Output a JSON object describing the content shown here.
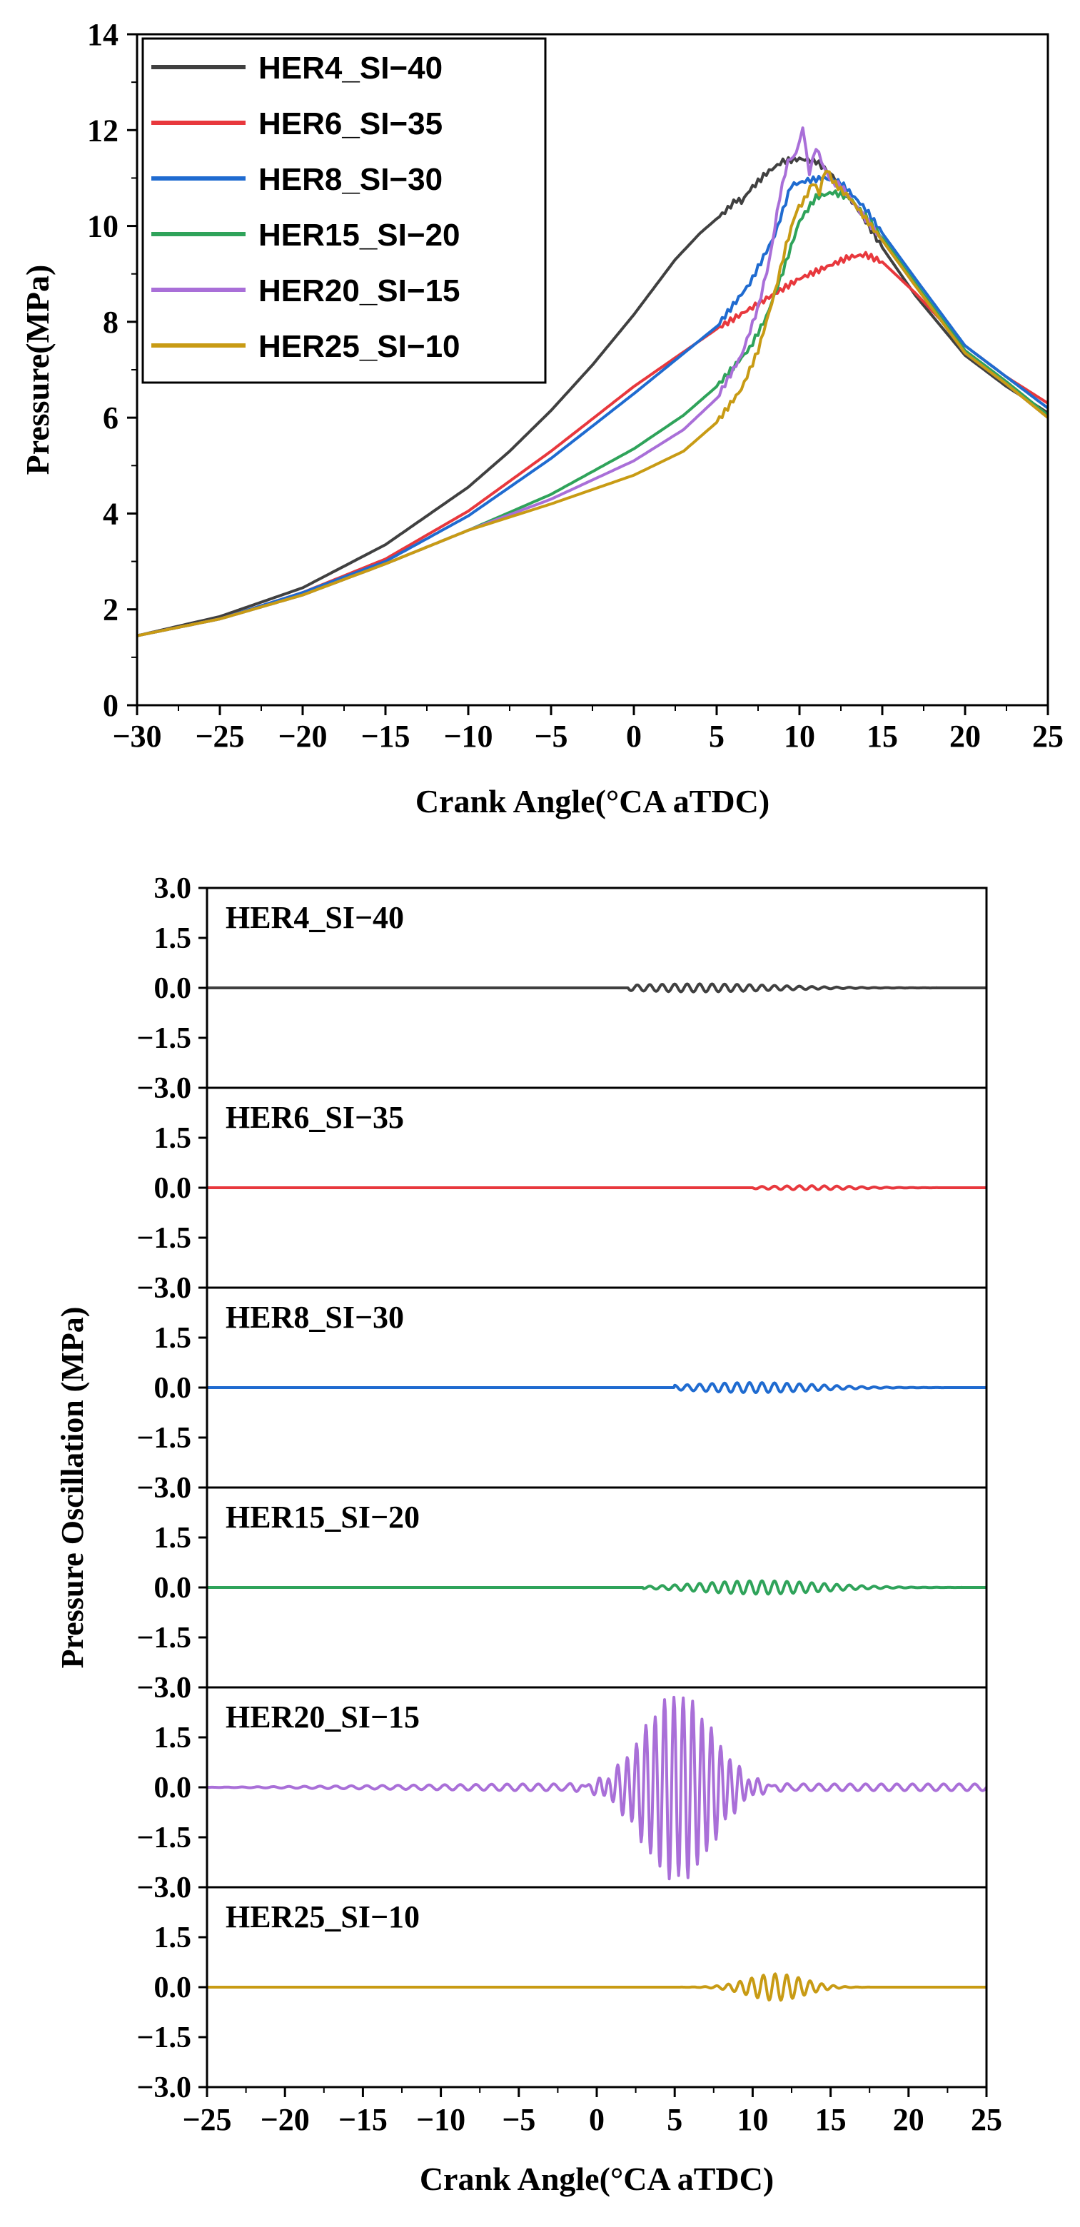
{
  "chart_data": [
    {
      "type": "line",
      "xlabel": "Crank Angle(°CA aTDC)",
      "ylabel": "Pressure(MPa)",
      "xlim": [
        -30,
        25
      ],
      "ylim": [
        0,
        14
      ],
      "xticks": [
        -30,
        -25,
        -20,
        -15,
        -10,
        -5,
        0,
        5,
        10,
        15,
        20,
        25
      ],
      "yticks": [
        0,
        2,
        4,
        6,
        8,
        10,
        12,
        14
      ],
      "grid": false,
      "legend": "top-left",
      "series": [
        {
          "name": "HER4_SI−40",
          "color": "#404040",
          "x": [
            -30,
            -25,
            -20,
            -15,
            -10,
            -7.5,
            -5,
            -2.5,
            0,
            2.5,
            4,
            5.5,
            6.2,
            6.5,
            7,
            8,
            9,
            10,
            11,
            12,
            13,
            14,
            15,
            17,
            20,
            22.5,
            25
          ],
          "y": [
            1.45,
            1.85,
            2.45,
            3.35,
            4.55,
            5.3,
            6.15,
            7.1,
            8.15,
            9.3,
            9.85,
            10.3,
            10.55,
            10.5,
            10.75,
            11.1,
            11.35,
            11.4,
            11.35,
            11.05,
            10.6,
            10.1,
            9.55,
            8.55,
            7.3,
            6.65,
            6.1
          ]
        },
        {
          "name": "HER6_SI−35",
          "color": "#e8383d",
          "x": [
            -30,
            -25,
            -20,
            -15,
            -10,
            -5,
            0,
            5,
            10,
            13,
            14,
            15,
            17,
            20,
            22.5,
            25
          ],
          "y": [
            1.45,
            1.8,
            2.35,
            3.05,
            4.05,
            5.3,
            6.65,
            7.85,
            8.9,
            9.35,
            9.4,
            9.25,
            8.6,
            7.5,
            6.85,
            6.3
          ]
        },
        {
          "name": "HER8_SI−30",
          "color": "#1f6bd0",
          "x": [
            -30,
            -25,
            -20,
            -15,
            -10,
            -5,
            0,
            5,
            7,
            8.5,
            9.5,
            10.5,
            11.5,
            12.5,
            14,
            15,
            17,
            20,
            22.5,
            25
          ],
          "y": [
            1.45,
            1.8,
            2.35,
            3.0,
            3.95,
            5.15,
            6.5,
            7.9,
            8.8,
            9.8,
            10.85,
            10.95,
            11.0,
            10.9,
            10.35,
            9.85,
            8.9,
            7.5,
            6.85,
            6.2
          ]
        },
        {
          "name": "HER15_SI−20",
          "color": "#2fa35a",
          "x": [
            -30,
            -25,
            -20,
            -15,
            -10,
            -5,
            0,
            3,
            5,
            7,
            8,
            9,
            10,
            11,
            12,
            13,
            14,
            15,
            17,
            20,
            22.5,
            25
          ],
          "y": [
            1.45,
            1.8,
            2.3,
            2.95,
            3.65,
            4.4,
            5.35,
            6.05,
            6.65,
            7.45,
            8.1,
            9.05,
            10.1,
            10.6,
            10.7,
            10.6,
            10.2,
            9.75,
            8.8,
            7.4,
            6.75,
            6.05
          ]
        },
        {
          "name": "HER20_SI−15",
          "color": "#a96fd8",
          "x": [
            -30,
            -25,
            -20,
            -15,
            -10,
            -5,
            0,
            3,
            5,
            6.5,
            7.5,
            8.2,
            8.8,
            9.3,
            9.8,
            10.2,
            10.6,
            11.0,
            11.5,
            12.0,
            12.5,
            13,
            14,
            15,
            17,
            20,
            22.5,
            25
          ],
          "y": [
            1.45,
            1.8,
            2.3,
            2.95,
            3.65,
            4.3,
            5.1,
            5.75,
            6.4,
            7.3,
            8.3,
            9.3,
            10.6,
            11.35,
            11.5,
            12.05,
            11.1,
            11.65,
            11.2,
            10.9,
            10.85,
            10.6,
            10.15,
            9.7,
            8.75,
            7.35,
            6.7,
            6.0
          ]
        },
        {
          "name": "HER25_SI−10",
          "color": "#c89b14",
          "x": [
            -30,
            -25,
            -20,
            -15,
            -10,
            -5,
            0,
            3,
            5,
            6.5,
            7.5,
            8.5,
            9.2,
            9.8,
            10.3,
            10.8,
            11.2,
            11.6,
            12.0,
            12.5,
            13,
            14,
            15,
            17,
            20,
            22.5,
            25
          ],
          "y": [
            1.45,
            1.8,
            2.3,
            2.95,
            3.65,
            4.2,
            4.8,
            5.3,
            5.9,
            6.6,
            7.4,
            8.6,
            9.6,
            10.3,
            10.55,
            10.9,
            10.7,
            11.2,
            10.95,
            10.75,
            10.6,
            10.15,
            9.7,
            8.75,
            7.35,
            6.7,
            6.0
          ]
        }
      ]
    },
    {
      "type": "line",
      "xlabel": "Crank Angle(°CA aTDC)",
      "ylabel": "Pressure Oscillation (MPa)",
      "xlim": [
        -25,
        25
      ],
      "ylim": [
        -3.0,
        3.0
      ],
      "xticks": [
        -25,
        -20,
        -15,
        -10,
        -5,
        0,
        5,
        10,
        15,
        20,
        25
      ],
      "yticks": [
        -3.0,
        -1.5,
        0.0,
        1.5,
        3.0
      ],
      "grid": false,
      "panels": [
        {
          "name": "HER4_SI−40",
          "color": "#404040",
          "oscillation": {
            "start": 2,
            "peak": 6.5,
            "amp": 0.12,
            "period": 0.8,
            "decay": 5
          }
        },
        {
          "name": "HER6_SI−35",
          "color": "#e8383d",
          "oscillation": {
            "start": 10,
            "peak": 13.5,
            "amp": 0.06,
            "period": 0.8,
            "decay": 3
          }
        },
        {
          "name": "HER8_SI−30",
          "color": "#1f6bd0",
          "oscillation": {
            "start": 5,
            "peak": 10,
            "amp": 0.15,
            "period": 0.8,
            "decay": 4
          }
        },
        {
          "name": "HER15_SI−20",
          "color": "#2fa35a",
          "oscillation": {
            "start": 3,
            "peak": 10.5,
            "amp": 0.2,
            "period": 0.8,
            "decay": 4
          }
        },
        {
          "name": "HER20_SI−15",
          "color": "#a96fd8",
          "oscillation": {
            "start": -25,
            "peak": 5.2,
            "amp": 2.75,
            "period": 0.6,
            "decay": 2.2,
            "background": 0.1
          }
        },
        {
          "name": "HER25_SI−10",
          "color": "#c89b14",
          "oscillation": {
            "start": 5,
            "peak": 11.5,
            "amp": 0.4,
            "period": 0.75,
            "decay": 1.8
          }
        }
      ]
    }
  ]
}
